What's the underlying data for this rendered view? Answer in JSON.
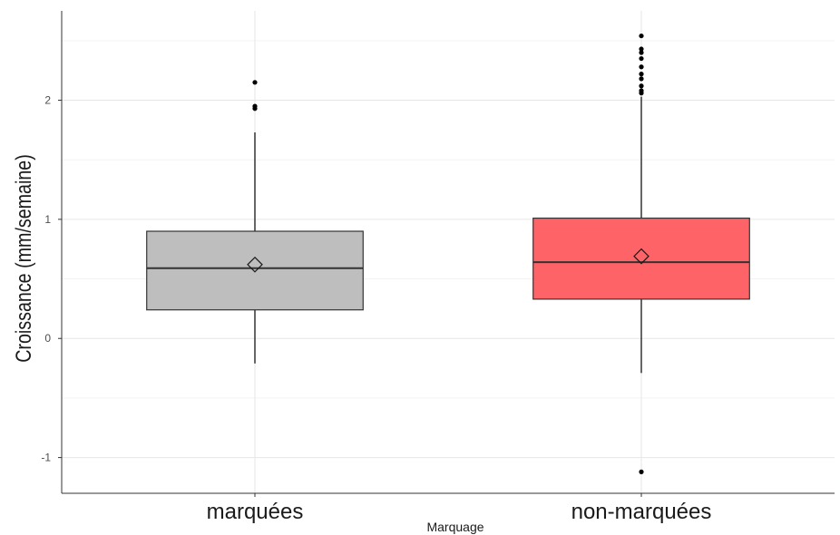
{
  "chart_data": {
    "type": "box",
    "title": "",
    "xlabel": "Marquage",
    "ylabel": "Croissance (mm/semaine)",
    "ylim": [
      -1.3,
      2.75
    ],
    "yticks": [
      -1,
      0,
      1,
      2
    ],
    "ytick_labels": [
      "-1",
      "0",
      "1",
      "2"
    ],
    "grid": true,
    "categories": [
      "marquées",
      "non-marquées"
    ],
    "boxes": [
      {
        "category": "marquées",
        "color": "#bebebe",
        "whisker_low": -0.21,
        "q1": 0.24,
        "median": 0.59,
        "q3": 0.9,
        "whisker_high": 1.73,
        "mean": 0.62,
        "outliers": [
          1.93,
          1.95,
          2.15
        ]
      },
      {
        "category": "non-marquées",
        "color": "#fd6367",
        "whisker_low": -0.29,
        "q1": 0.33,
        "median": 0.64,
        "q3": 1.01,
        "whisker_high": 2.03,
        "mean": 0.69,
        "outliers": [
          -1.12,
          2.06,
          2.08,
          2.12,
          2.18,
          2.22,
          2.28,
          2.35,
          2.4,
          2.43,
          2.54
        ]
      }
    ]
  }
}
